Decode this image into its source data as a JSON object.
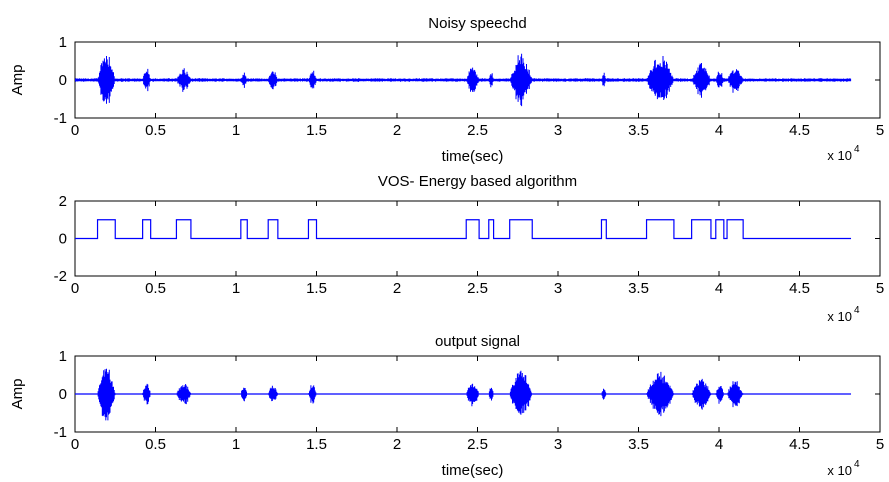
{
  "chart_data": [
    {
      "type": "line",
      "title": "Noisy speechd",
      "xlabel": "time(sec)",
      "ylabel": "Amp",
      "xlim": [
        0,
        5
      ],
      "ylim": [
        -1,
        1
      ],
      "x_multiplier": "x 10",
      "x_multiplier_exp": "4",
      "xticks": [
        "0",
        "0.5",
        "1",
        "1.5",
        "2",
        "2.5",
        "3",
        "3.5",
        "4",
        "4.5",
        "5"
      ],
      "yticks": [
        "-1",
        "0",
        "1"
      ],
      "x_data_end": 4.82,
      "noise_level": 0.05,
      "bursts": [
        {
          "x": [
            0.14,
            0.25
          ],
          "amp": 0.85
        },
        {
          "x": [
            0.42,
            0.47
          ],
          "amp": 0.35
        },
        {
          "x": [
            0.63,
            0.72
          ],
          "amp": 0.35
        },
        {
          "x": [
            1.03,
            1.07
          ],
          "amp": 0.25
        },
        {
          "x": [
            1.2,
            1.26
          ],
          "amp": 0.3
        },
        {
          "x": [
            1.45,
            1.5
          ],
          "amp": 0.3
        },
        {
          "x": [
            2.43,
            2.51
          ],
          "amp": 0.4
        },
        {
          "x": [
            2.57,
            2.6
          ],
          "amp": 0.25
        },
        {
          "x": [
            2.7,
            2.84
          ],
          "amp": 0.75
        },
        {
          "x": [
            3.27,
            3.3
          ],
          "amp": 0.2
        },
        {
          "x": [
            3.55,
            3.72
          ],
          "amp": 0.7
        },
        {
          "x": [
            3.83,
            3.95
          ],
          "amp": 0.5
        },
        {
          "x": [
            3.98,
            4.03
          ],
          "amp": 0.3
        },
        {
          "x": [
            4.05,
            4.15
          ],
          "amp": 0.4
        }
      ],
      "color": "#0000ff"
    },
    {
      "type": "line",
      "title": "VOS- Energy based algorithm",
      "xlabel": "",
      "ylabel": "",
      "xlim": [
        0,
        5
      ],
      "ylim": [
        -2,
        2
      ],
      "x_multiplier": "x 10",
      "x_multiplier_exp": "4",
      "xticks": [
        "0",
        "0.5",
        "1",
        "1.5",
        "2",
        "2.5",
        "3",
        "3.5",
        "4",
        "4.5",
        "5"
      ],
      "yticks": [
        "-2",
        "0",
        "2"
      ],
      "x_data_end": 4.82,
      "segments": [
        [
          0.14,
          0.25
        ],
        [
          0.42,
          0.47
        ],
        [
          0.63,
          0.72
        ],
        [
          1.03,
          1.07
        ],
        [
          1.2,
          1.26
        ],
        [
          1.45,
          1.5
        ],
        [
          2.43,
          2.51
        ],
        [
          2.57,
          2.6
        ],
        [
          2.7,
          2.84
        ],
        [
          3.27,
          3.3
        ],
        [
          3.55,
          3.72
        ],
        [
          3.83,
          3.95
        ],
        [
          3.98,
          4.03
        ],
        [
          4.05,
          4.15
        ]
      ],
      "color": "#0000ff"
    },
    {
      "type": "line",
      "title": "output signal",
      "xlabel": "time(sec)",
      "ylabel": "Amp",
      "xlim": [
        0,
        5
      ],
      "ylim": [
        -1,
        1
      ],
      "x_multiplier": "x 10",
      "x_multiplier_exp": "4",
      "xticks": [
        "0",
        "0.5",
        "1",
        "1.5",
        "2",
        "2.5",
        "3",
        "3.5",
        "4",
        "4.5",
        "5"
      ],
      "yticks": [
        "-1",
        "0",
        "1"
      ],
      "x_data_end": 4.82,
      "bursts": [
        {
          "x": [
            0.14,
            0.25
          ],
          "amp": 0.85
        },
        {
          "x": [
            0.42,
            0.47
          ],
          "amp": 0.35
        },
        {
          "x": [
            0.63,
            0.72
          ],
          "amp": 0.35
        },
        {
          "x": [
            1.03,
            1.07
          ],
          "amp": 0.25
        },
        {
          "x": [
            1.2,
            1.26
          ],
          "amp": 0.3
        },
        {
          "x": [
            1.45,
            1.5
          ],
          "amp": 0.3
        },
        {
          "x": [
            2.43,
            2.51
          ],
          "amp": 0.4
        },
        {
          "x": [
            2.57,
            2.6
          ],
          "amp": 0.25
        },
        {
          "x": [
            2.7,
            2.84
          ],
          "amp": 0.75
        },
        {
          "x": [
            3.27,
            3.3
          ],
          "amp": 0.2
        },
        {
          "x": [
            3.55,
            3.72
          ],
          "amp": 0.7
        },
        {
          "x": [
            3.83,
            3.95
          ],
          "amp": 0.5
        },
        {
          "x": [
            3.98,
            4.03
          ],
          "amp": 0.3
        },
        {
          "x": [
            4.05,
            4.15
          ],
          "amp": 0.4
        }
      ],
      "color": "#0000ff"
    }
  ]
}
